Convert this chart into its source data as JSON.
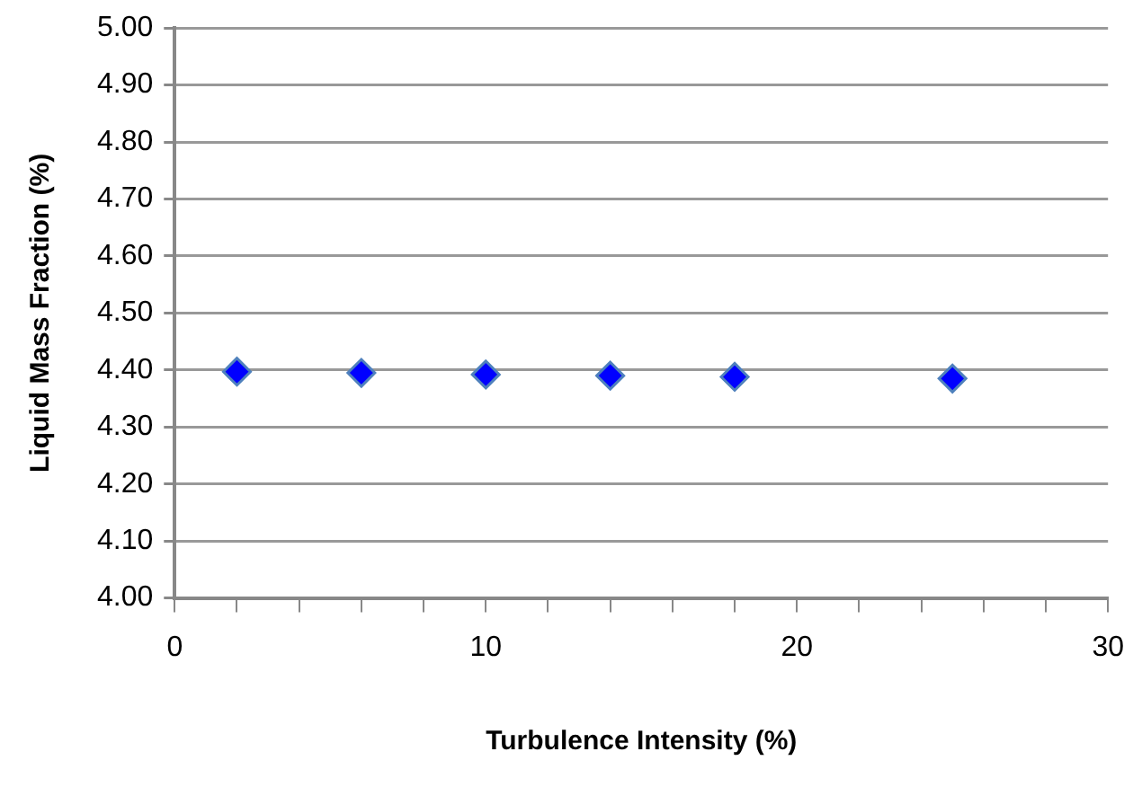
{
  "chart_data": {
    "type": "scatter",
    "xlabel": "Turbulence Intensity (%)",
    "ylabel": "Liquid Mass Fraction (%)",
    "x": [
      2,
      6,
      10,
      14,
      18,
      25
    ],
    "series": [
      {
        "color": "#0000ff",
        "values": [
          4.397,
          4.395,
          4.392,
          4.39,
          4.388,
          4.385
        ]
      }
    ],
    "xlim": [
      0,
      30
    ],
    "xticks": [
      0,
      {
        "value": 2,
        "label": null
      },
      {
        "value": 4,
        "label": null
      },
      {
        "value": 6,
        "label": null
      },
      {
        "value": 8,
        "label": null
      },
      10,
      {
        "value": 12,
        "label": null
      },
      {
        "value": 14,
        "label": null
      },
      {
        "value": 16,
        "label": null
      },
      {
        "value": 18,
        "label": null
      },
      20,
      {
        "value": 22,
        "label": null
      },
      {
        "value": 24,
        "label": null
      },
      {
        "value": 26,
        "label": null
      },
      {
        "value": 28,
        "label": null
      },
      30
    ],
    "ylim": [
      4.0,
      5.0
    ],
    "yticks": [
      {
        "value": 4.0,
        "label": "4.00"
      },
      {
        "value": 4.1,
        "label": "4.10"
      },
      {
        "value": 4.2,
        "label": "4.20"
      },
      {
        "value": 4.3,
        "label": "4.30"
      },
      {
        "value": 4.4,
        "label": "4.40"
      },
      {
        "value": 4.5,
        "label": "4.50"
      },
      {
        "value": 4.6,
        "label": "4.60"
      },
      {
        "value": 4.7,
        "label": "4.70"
      },
      {
        "value": 4.8,
        "label": "4.80"
      },
      {
        "value": 4.9,
        "label": "4.90"
      },
      {
        "value": 5.0,
        "label": "5.00"
      }
    ],
    "grid": "y",
    "legend": false,
    "marker": "diamond"
  }
}
